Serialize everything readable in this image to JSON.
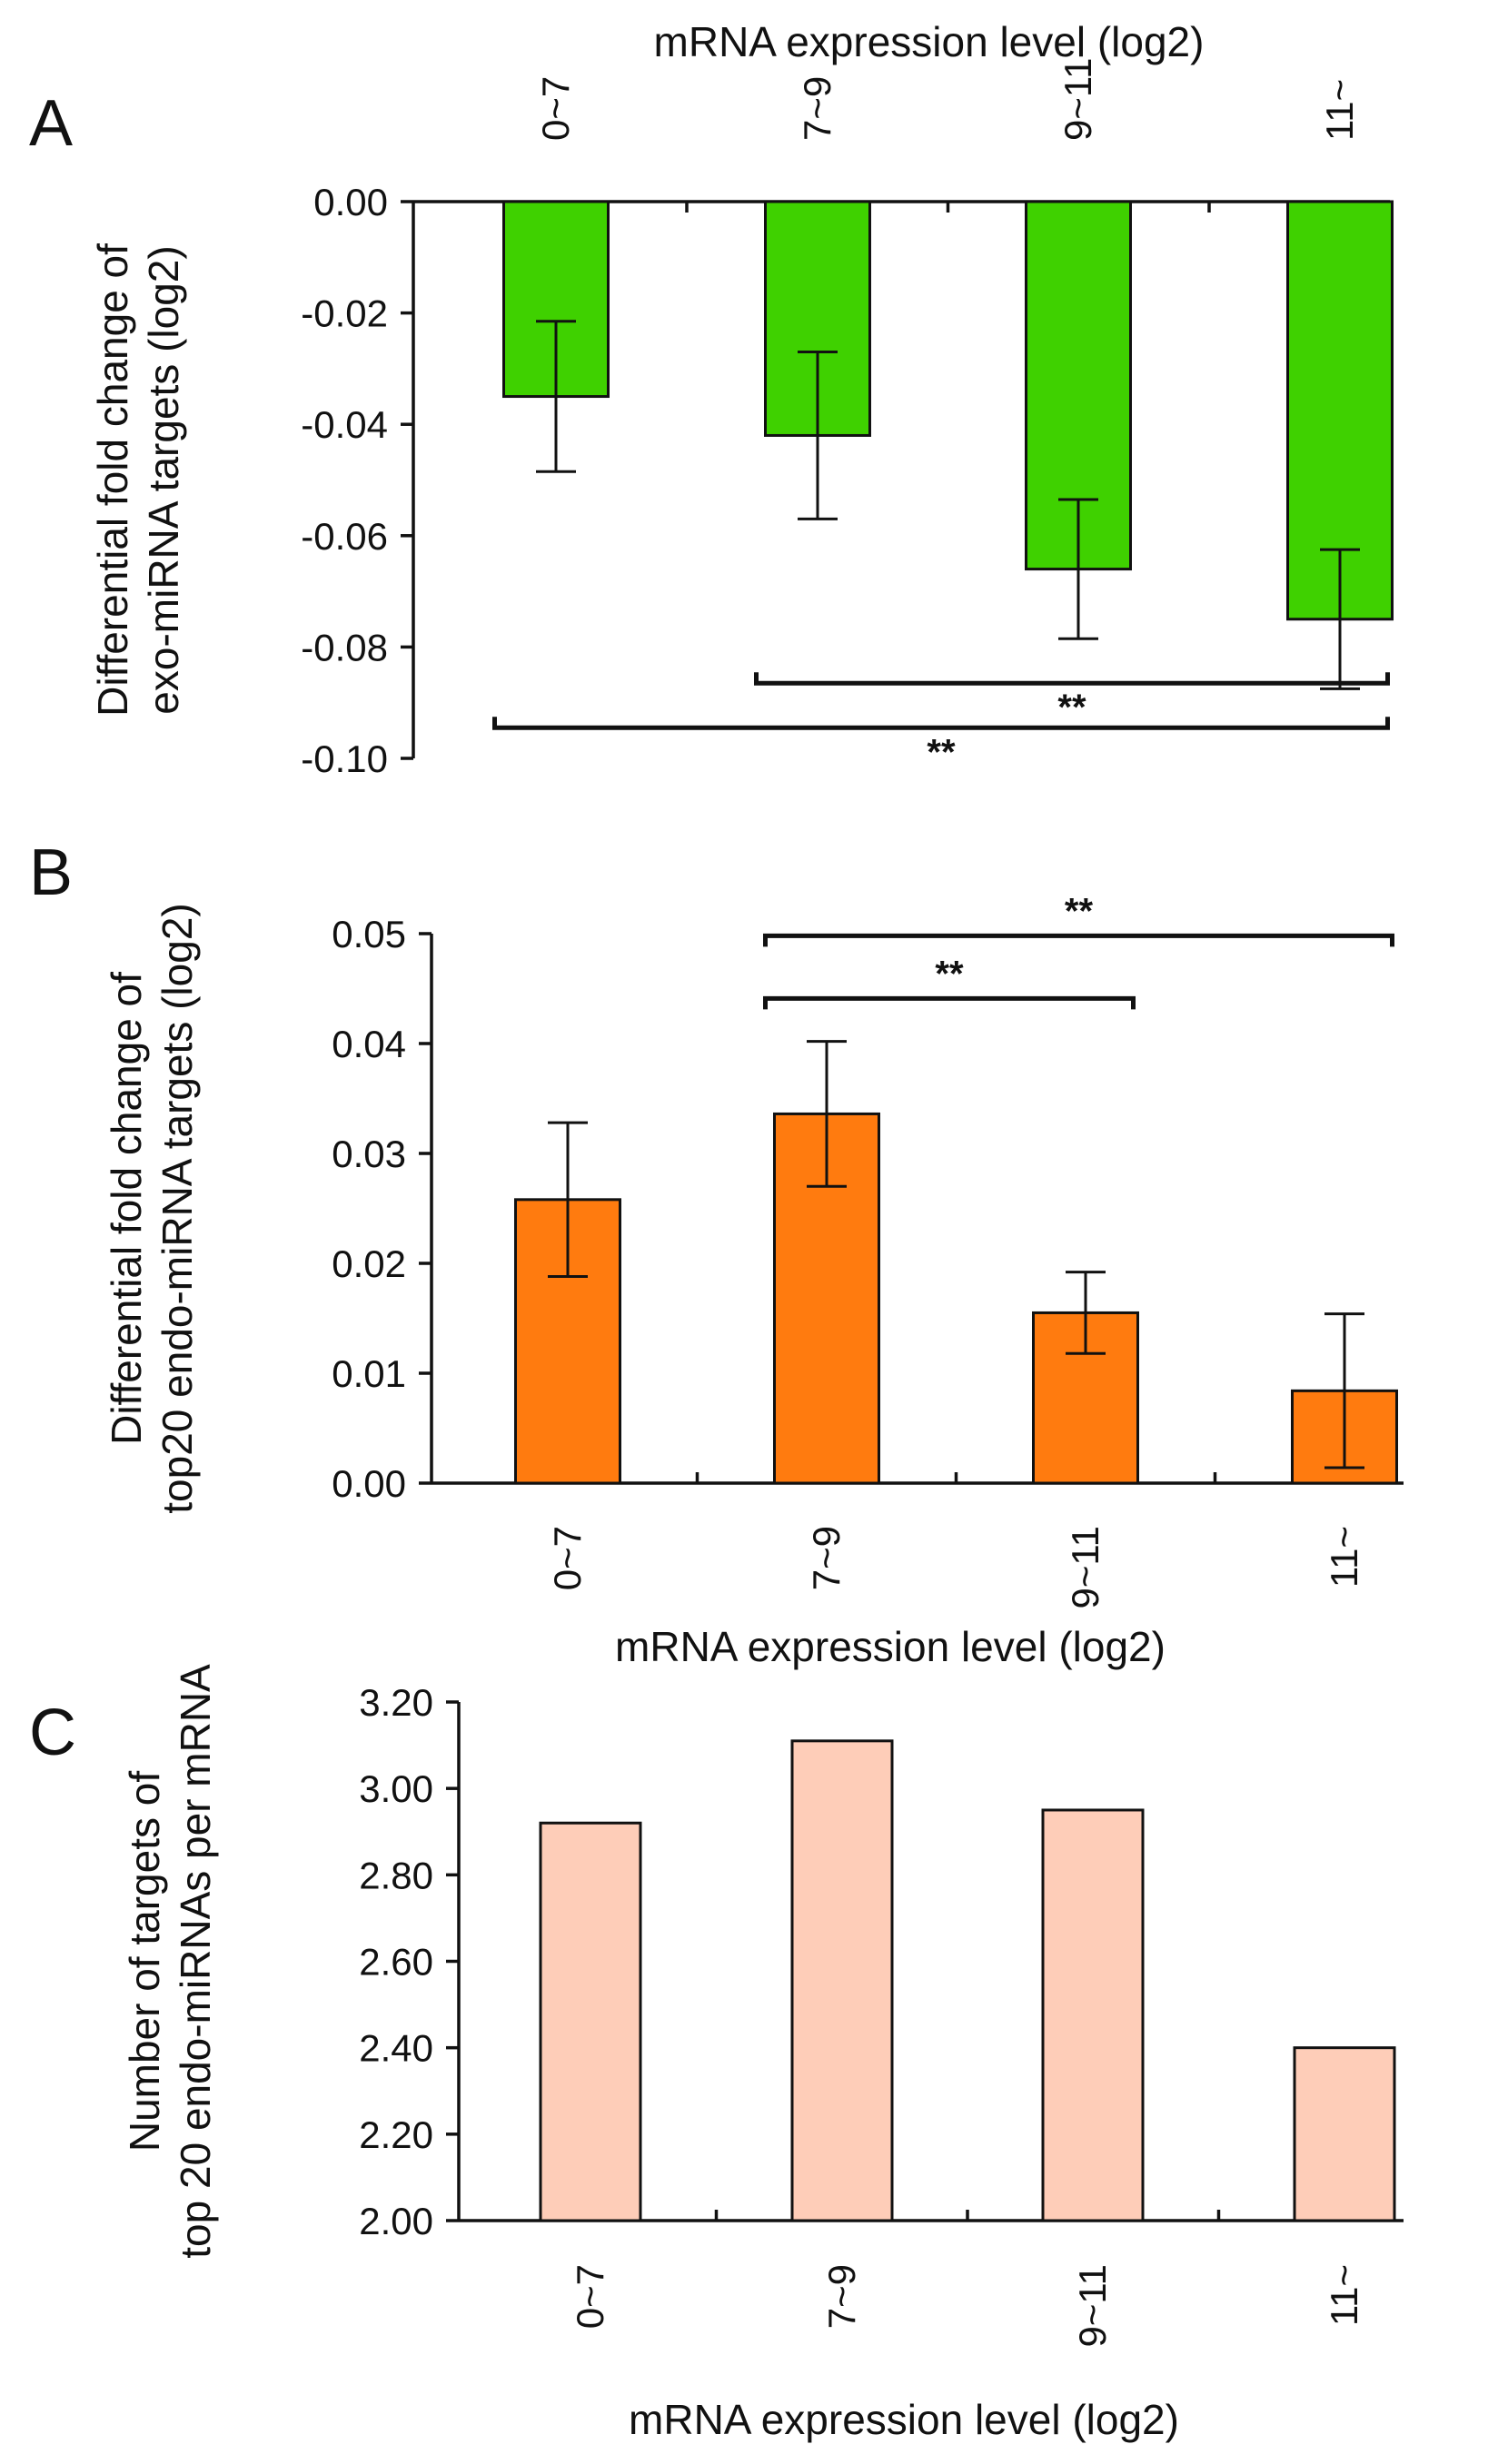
{
  "colors": {
    "panel_a_bar": "#3fd100",
    "panel_b_bar": "#ff7b0f",
    "panel_c_bar": "#fecdb8",
    "outline": "#111111"
  },
  "chart_data": [
    {
      "panel": "A",
      "type": "bar",
      "title": "mRNA expression level (log2)",
      "xlabel": "",
      "ylabel": "Differential fold change of exo-miRNA targets (log2)",
      "ylabel_lines": [
        "Differential fold change of",
        "exo-miRNA targets (log2)"
      ],
      "categories": [
        "0~7",
        "7~9",
        "9~11",
        "11~"
      ],
      "values": [
        -0.035,
        -0.042,
        -0.066,
        -0.075
      ],
      "error": [
        0.0135,
        0.015,
        0.0125,
        0.0125
      ],
      "ylim": [
        -0.1,
        0.0
      ],
      "yticks": [
        0.0,
        -0.02,
        -0.04,
        -0.06,
        -0.08,
        -0.1
      ],
      "ytick_labels": [
        "0.00",
        "-0.02",
        "-0.04",
        "-0.06",
        "-0.08",
        "-0.10"
      ],
      "category_axis": "top",
      "significance": [
        {
          "from": 1,
          "to": 3,
          "label": "**",
          "level": -0.0865
        },
        {
          "from": 0,
          "to": 3,
          "label": "**",
          "level": -0.0945
        }
      ]
    },
    {
      "panel": "B",
      "type": "bar",
      "title": "",
      "xlabel": "mRNA expression level (log2)",
      "ylabel": "Differential fold change of top20 endo-miRNA targets (log2)",
      "ylabel_lines": [
        "Differential fold change of",
        "top20 endo-miRNA targets (log2)"
      ],
      "categories": [
        "0~7",
        "7~9",
        "9~11",
        "11~"
      ],
      "values": [
        0.0258,
        0.0336,
        0.0155,
        0.0084
      ],
      "error": [
        0.007,
        0.0066,
        0.0037,
        0.007
      ],
      "ylim": [
        0.0,
        0.05
      ],
      "yticks": [
        0.0,
        0.01,
        0.02,
        0.03,
        0.04,
        0.05
      ],
      "ytick_labels": [
        "0.00",
        "0.01",
        "0.02",
        "0.03",
        "0.04",
        "0.05"
      ],
      "category_axis": "bottom",
      "significance": [
        {
          "from": 1,
          "to": 3,
          "label": "**",
          "level": 0.0498
        },
        {
          "from": 1,
          "to": 2,
          "label": "**",
          "level": 0.0441
        }
      ]
    },
    {
      "panel": "C",
      "type": "bar",
      "title": "",
      "xlabel": "mRNA expression level (log2)",
      "ylabel": "Number of targets of top 20 endo-miRNAs per mRNA",
      "ylabel_lines": [
        "Number of targets of",
        "top 20 endo-miRNAs per mRNA"
      ],
      "categories": [
        "0~7",
        "7~9",
        "9~11",
        "11~"
      ],
      "values": [
        2.92,
        3.11,
        2.95,
        2.4
      ],
      "ylim": [
        2.0,
        3.2
      ],
      "yticks": [
        2.0,
        2.2,
        2.4,
        2.6,
        2.8,
        3.0,
        3.2
      ],
      "ytick_labels": [
        "2.00",
        "2.20",
        "2.40",
        "2.60",
        "2.80",
        "3.00",
        "3.20"
      ],
      "category_axis": "bottom",
      "significance": []
    }
  ]
}
